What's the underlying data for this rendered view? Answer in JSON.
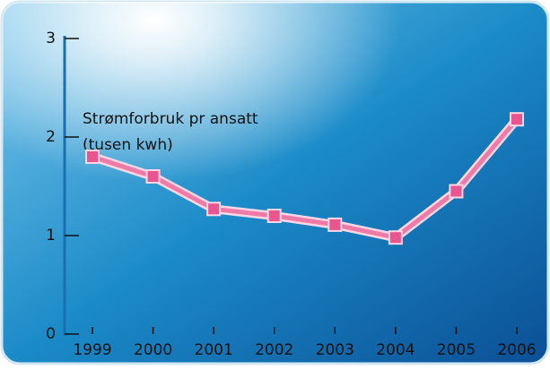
{
  "chart_data": {
    "type": "line",
    "title": "Strømforbruk pr ansatt",
    "subtitle": "(tusen kwh)",
    "categories": [
      "1999",
      "2000",
      "2001",
      "2002",
      "2003",
      "2004",
      "2005",
      "2006"
    ],
    "values": [
      1.8,
      1.6,
      1.27,
      1.2,
      1.11,
      0.98,
      1.45,
      2.18
    ],
    "color": "#f07aa6",
    "ylim": [
      0,
      3
    ],
    "yticks": [
      0,
      1,
      2,
      3
    ]
  }
}
